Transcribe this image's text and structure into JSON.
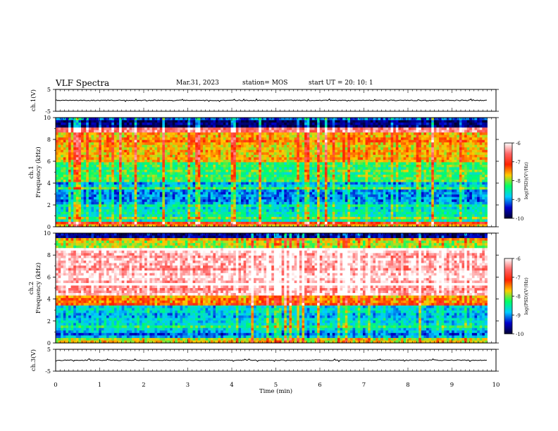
{
  "header": {
    "title": "VLF Spectra",
    "date": "Mar.31, 2023",
    "station": "station= MOS",
    "start": "start  UT  =   20: 10: 1"
  },
  "colormap": [
    "#000033",
    "#0000cc",
    "#00ccff",
    "#00ff66",
    "#ffcc00",
    "#ff2200",
    "#ff6666",
    "#ffffff"
  ],
  "chart_data": [
    {
      "type": "line",
      "name": "ch1-waveform",
      "ylabel": "ch.1(V)",
      "ylim": [
        -5,
        5
      ],
      "yticks": [
        -5,
        5
      ],
      "xlim": [
        0,
        10
      ],
      "baseline": 0
    },
    {
      "type": "heatmap",
      "name": "ch1-spectrogram",
      "ylabel": "ch.1\nFrequency (kHz)",
      "ylim": [
        0,
        10
      ],
      "yticks": [
        0,
        2,
        4,
        6,
        8,
        10
      ],
      "xlim": [
        0,
        9.8
      ],
      "colorbar": {
        "label": "log(PSD)(V²/Hz)",
        "range": [
          -10,
          -6
        ],
        "ticks": [
          -10,
          -9,
          -8,
          -7,
          -6
        ]
      },
      "bands": [
        {
          "from": 9.0,
          "to": 10.0,
          "level": -9.8
        },
        {
          "from": 8.6,
          "to": 9.0,
          "level": -6.4
        },
        {
          "from": 6.0,
          "to": 8.6,
          "level": -7.6
        },
        {
          "from": 4.0,
          "to": 6.0,
          "level": -8.3
        },
        {
          "from": 2.0,
          "to": 4.0,
          "level": -8.9
        },
        {
          "from": 0.4,
          "to": 2.0,
          "level": -8.6
        },
        {
          "from": 0.0,
          "to": 0.4,
          "level": -7.5
        }
      ]
    },
    {
      "type": "heatmap",
      "name": "ch2-spectrogram",
      "ylabel": "ch.2\nFrequency (kHz)",
      "ylim": [
        0,
        10
      ],
      "yticks": [
        0,
        2,
        4,
        6,
        8,
        10
      ],
      "xlim": [
        0,
        9.8
      ],
      "colorbar": {
        "label": "log(PSD)(V²/Hz)",
        "range": [
          -10,
          -6
        ],
        "ticks": [
          -10,
          -9,
          -8,
          -7,
          -6
        ]
      },
      "bands": [
        {
          "from": 9.6,
          "to": 10.0,
          "level": -9.8
        },
        {
          "from": 8.6,
          "to": 9.6,
          "level": -8.0
        },
        {
          "from": 4.4,
          "to": 8.6,
          "level": -6.3
        },
        {
          "from": 3.4,
          "to": 4.4,
          "level": -7.4
        },
        {
          "from": 0.4,
          "to": 3.4,
          "level": -8.8
        },
        {
          "from": 0.0,
          "to": 0.4,
          "level": -7.8
        }
      ]
    },
    {
      "type": "line",
      "name": "ch3-waveform",
      "ylabel": "ch.3(V)",
      "ylim": [
        -5,
        5
      ],
      "yticks": [
        -5,
        5
      ],
      "xlim": [
        0,
        10
      ],
      "xlabel": "Time  (min)",
      "xticks": [
        0,
        1,
        2,
        3,
        4,
        5,
        6,
        7,
        8,
        9,
        10
      ],
      "baseline": 0
    }
  ]
}
